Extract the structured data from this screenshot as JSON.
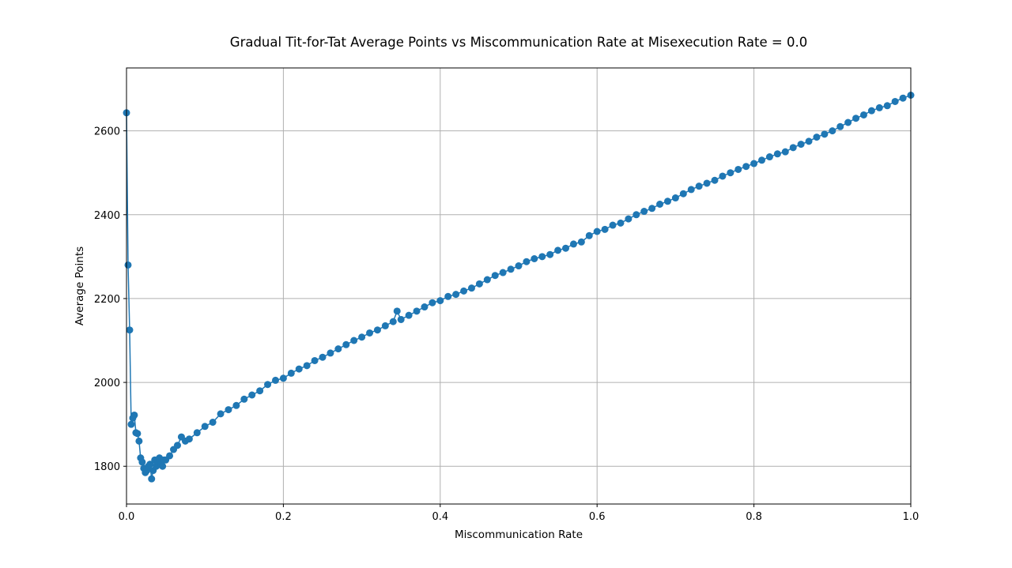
{
  "chart_data": {
    "type": "line",
    "title": "Gradual Tit-for-Tat Average Points vs Miscommunication Rate at Misexecution Rate = 0.0",
    "xlabel": "Miscommunication Rate",
    "ylabel": "Average Points",
    "xlim": [
      0.0,
      1.0
    ],
    "ylim": [
      1710,
      2750
    ],
    "xticks": [
      0.0,
      0.2,
      0.4,
      0.6,
      0.8,
      1.0
    ],
    "xtick_labels": [
      "0.0",
      "0.2",
      "0.4",
      "0.6",
      "0.8",
      "1.0"
    ],
    "yticks": [
      1800,
      2000,
      2200,
      2400,
      2600
    ],
    "ytick_labels": [
      "1800",
      "2000",
      "2200",
      "2400",
      "2600"
    ],
    "grid": true,
    "marker": "circle",
    "series_color": "#1f77b4",
    "series": [
      {
        "x": [
          0.0,
          0.002,
          0.004,
          0.006,
          0.008,
          0.01,
          0.012,
          0.014,
          0.016,
          0.018,
          0.02,
          0.022,
          0.024,
          0.026,
          0.028,
          0.03,
          0.032,
          0.034,
          0.036,
          0.038,
          0.04,
          0.042,
          0.044,
          0.046,
          0.048,
          0.05,
          0.055,
          0.06,
          0.065,
          0.07,
          0.075,
          0.08,
          0.09,
          0.1,
          0.11,
          0.12,
          0.13,
          0.14,
          0.15,
          0.16,
          0.17,
          0.18,
          0.19,
          0.2,
          0.21,
          0.22,
          0.23,
          0.24,
          0.25,
          0.26,
          0.27,
          0.28,
          0.29,
          0.3,
          0.31,
          0.32,
          0.33,
          0.34,
          0.345,
          0.35,
          0.36,
          0.37,
          0.38,
          0.39,
          0.4,
          0.41,
          0.42,
          0.43,
          0.44,
          0.45,
          0.46,
          0.47,
          0.48,
          0.49,
          0.5,
          0.51,
          0.52,
          0.53,
          0.54,
          0.55,
          0.56,
          0.57,
          0.58,
          0.59,
          0.6,
          0.61,
          0.62,
          0.63,
          0.64,
          0.65,
          0.66,
          0.67,
          0.68,
          0.69,
          0.7,
          0.71,
          0.72,
          0.73,
          0.74,
          0.75,
          0.76,
          0.77,
          0.78,
          0.79,
          0.8,
          0.81,
          0.82,
          0.83,
          0.84,
          0.85,
          0.86,
          0.87,
          0.88,
          0.89,
          0.9,
          0.91,
          0.92,
          0.93,
          0.94,
          0.95,
          0.96,
          0.97,
          0.98,
          0.99,
          1.0
        ],
        "values": [
          2643,
          2280,
          2125,
          1900,
          1915,
          1922,
          1880,
          1878,
          1860,
          1820,
          1810,
          1795,
          1785,
          1790,
          1800,
          1805,
          1770,
          1790,
          1815,
          1800,
          1810,
          1820,
          1805,
          1800,
          1815,
          1815,
          1825,
          1840,
          1850,
          1870,
          1860,
          1865,
          1880,
          1895,
          1905,
          1925,
          1935,
          1945,
          1960,
          1970,
          1980,
          1995,
          2005,
          2010,
          2022,
          2032,
          2040,
          2052,
          2060,
          2070,
          2080,
          2090,
          2100,
          2108,
          2118,
          2125,
          2135,
          2145,
          2170,
          2150,
          2160,
          2170,
          2180,
          2190,
          2195,
          2205,
          2210,
          2218,
          2225,
          2235,
          2245,
          2255,
          2262,
          2270,
          2278,
          2288,
          2295,
          2300,
          2305,
          2315,
          2320,
          2330,
          2335,
          2350,
          2360,
          2365,
          2375,
          2380,
          2390,
          2400,
          2408,
          2415,
          2425,
          2432,
          2440,
          2450,
          2460,
          2468,
          2475,
          2482,
          2492,
          2500,
          2508,
          2515,
          2522,
          2530,
          2538,
          2545,
          2550,
          2560,
          2568,
          2575,
          2585,
          2592,
          2600,
          2610,
          2620,
          2630,
          2638,
          2648,
          2655,
          2660,
          2670,
          2678,
          2685
        ]
      }
    ]
  }
}
